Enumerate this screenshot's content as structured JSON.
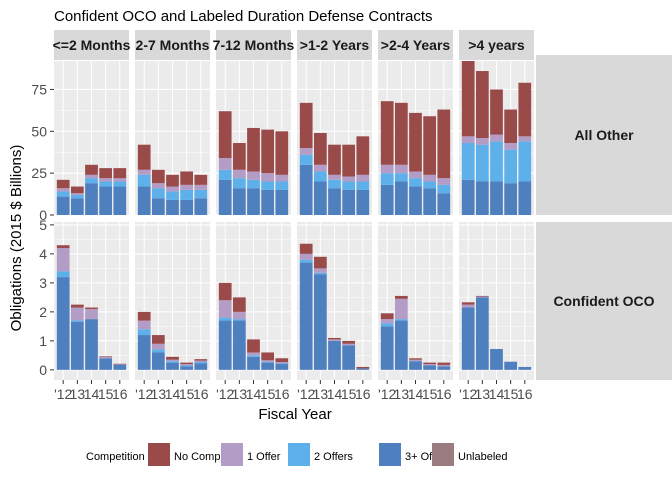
{
  "chart_data": {
    "type": "bar",
    "stacked": true,
    "title": "Confident OCO and Labeled Duration Defense Contracts",
    "xlabel": "Fiscal Year",
    "ylabel": "Obligations (2015 $ Billions)",
    "x": [
      "2012",
      "2013",
      "2014",
      "2015",
      "2016"
    ],
    "x_tick_labels": [
      "'12",
      "13",
      "14",
      "15",
      "16"
    ],
    "column_facets": [
      "<=2 Months",
      "2-7 Months",
      "7-12 Months",
      ">1-2 Years",
      ">2-4 Years",
      ">4 years"
    ],
    "row_facets": [
      "All Other",
      "Confident OCO"
    ],
    "legend": {
      "title": "Competition",
      "position": "bottom",
      "entries": [
        {
          "label": "No Comp.",
          "color": "#9b4a4a"
        },
        {
          "label": "1 Offer",
          "color": "#b39cc6"
        },
        {
          "label": "2 Offers",
          "color": "#5db0ea"
        },
        {
          "label": "3+ Offers",
          "color": "#4e7fbf"
        },
        {
          "label": "Unlabeled",
          "color": "#9a7b80"
        }
      ]
    },
    "grid": true,
    "stack_order_bottom_to_top": [
      "Unlabeled",
      "3+ Offers",
      "2 Offers",
      "1 Offer",
      "No Comp."
    ],
    "panels": [
      {
        "row": "All Other",
        "ylim": [
          0,
          92
        ],
        "yticks": [
          0,
          25,
          50,
          75
        ],
        "facets": [
          {
            "col": "<=2 Months",
            "series": {
              "Unlabeled": [
                0,
                0,
                0,
                0,
                0
              ],
              "3+ Offers": [
                11,
                10,
                19,
                17,
                17
              ],
              "2 Offers": [
                3,
                2,
                3,
                3,
                3
              ],
              "1 Offer": [
                2,
                1,
                2,
                2,
                2
              ],
              "No Comp.": [
                5,
                4,
                6,
                6,
                6
              ]
            }
          },
          {
            "col": "2-7 Months",
            "series": {
              "Unlabeled": [
                0,
                0,
                0,
                0,
                0
              ],
              "3+ Offers": [
                17,
                10,
                9,
                9,
                10
              ],
              "2 Offers": [
                7,
                6,
                5,
                6,
                5
              ],
              "1 Offer": [
                3,
                3,
                3,
                3,
                3
              ],
              "No Comp.": [
                15,
                8,
                7,
                8,
                6
              ]
            }
          },
          {
            "col": "7-12 Months",
            "series": {
              "Unlabeled": [
                0,
                0,
                0,
                0,
                0
              ],
              "3+ Offers": [
                21,
                16,
                16,
                15,
                15
              ],
              "2 Offers": [
                6,
                6,
                5,
                5,
                5
              ],
              "1 Offer": [
                7,
                5,
                5,
                5,
                4
              ],
              "No Comp.": [
                28,
                16,
                26,
                26,
                26
              ]
            }
          },
          {
            "col": ">1-2 Years",
            "series": {
              "Unlabeled": [
                0,
                0,
                0,
                0,
                0
              ],
              "3+ Offers": [
                30,
                20,
                16,
                15,
                15
              ],
              "2 Offers": [
                6,
                6,
                5,
                5,
                5
              ],
              "1 Offer": [
                4,
                4,
                3,
                3,
                4
              ],
              "No Comp.": [
                27,
                19,
                18,
                19,
                23
              ]
            }
          },
          {
            "col": ">2-4 Years",
            "series": {
              "Unlabeled": [
                0,
                0,
                0,
                0,
                0
              ],
              "3+ Offers": [
                18,
                20,
                17,
                16,
                13
              ],
              "2 Offers": [
                7,
                5,
                5,
                4,
                5
              ],
              "1 Offer": [
                5,
                5,
                4,
                4,
                4
              ],
              "No Comp.": [
                38,
                37,
                35,
                35,
                41
              ]
            }
          },
          {
            "col": ">4 years",
            "series": {
              "Unlabeled": [
                0,
                0,
                0,
                0,
                0
              ],
              "3+ Offers": [
                21,
                20,
                20,
                19,
                20
              ],
              "2 Offers": [
                22,
                22,
                24,
                20,
                24
              ],
              "1 Offer": [
                4,
                4,
                4,
                4,
                3
              ],
              "No Comp.": [
                45,
                40,
                27,
                20,
                32
              ]
            }
          }
        ]
      },
      {
        "row": "Confident OCO",
        "ylim": [
          -0.35,
          5.1
        ],
        "yticks": [
          0,
          1,
          2,
          3,
          4,
          5
        ],
        "facets": [
          {
            "col": "<=2 Months",
            "series": {
              "Unlabeled": [
                0,
                0,
                0,
                0,
                0
              ],
              "3+ Offers": [
                3.2,
                1.65,
                1.75,
                0.4,
                0.18
              ],
              "2 Offers": [
                0.2,
                0.05,
                0,
                0,
                0
              ],
              "1 Offer": [
                0.8,
                0.45,
                0.35,
                0.05,
                0.02
              ],
              "No Comp.": [
                0.1,
                0.1,
                0.05,
                0.02,
                0.01
              ]
            }
          },
          {
            "col": "2-7 Months",
            "series": {
              "Unlabeled": [
                0,
                0,
                0,
                0,
                0
              ],
              "3+ Offers": [
                1.2,
                0.6,
                0.25,
                0.12,
                0.22
              ],
              "2 Offers": [
                0.2,
                0.1,
                0.05,
                0.03,
                0.05
              ],
              "1 Offer": [
                0.3,
                0.2,
                0.05,
                0.05,
                0.05
              ],
              "No Comp.": [
                0.3,
                0.3,
                0.1,
                0.05,
                0.05
              ]
            }
          },
          {
            "col": "7-12 Months",
            "series": {
              "Unlabeled": [
                0,
                0,
                0,
                0,
                0
              ],
              "3+ Offers": [
                1.7,
                1.7,
                0.45,
                0.25,
                0.2
              ],
              "2 Offers": [
                0.1,
                0.05,
                0.05,
                0.03,
                0.02
              ],
              "1 Offer": [
                0.6,
                0.25,
                0.1,
                0.05,
                0.05
              ],
              "No Comp.": [
                0.6,
                0.5,
                0.45,
                0.27,
                0.13
              ]
            }
          },
          {
            "col": ">1-2 Years",
            "series": {
              "Unlabeled": [
                0,
                0,
                0,
                0,
                0
              ],
              "3+ Offers": [
                3.7,
                3.3,
                1.0,
                0.85,
                0.05
              ],
              "2 Offers": [
                0.1,
                0.05,
                0,
                0,
                0
              ],
              "1 Offer": [
                0.2,
                0.15,
                0.05,
                0.05,
                0
              ],
              "No Comp.": [
                0.35,
                0.4,
                0.05,
                0.1,
                0.05
              ]
            }
          },
          {
            "col": ">2-4 Years",
            "series": {
              "Unlabeled": [
                0,
                0,
                0,
                0,
                0
              ],
              "3+ Offers": [
                1.5,
                1.7,
                0.3,
                0.15,
                0.12
              ],
              "2 Offers": [
                0.1,
                0.05,
                0,
                0,
                0
              ],
              "1 Offer": [
                0.15,
                0.7,
                0.05,
                0.05,
                0.05
              ],
              "No Comp.": [
                0.2,
                0.1,
                0.05,
                0.05,
                0.08
              ]
            }
          },
          {
            "col": ">4 years",
            "series": {
              "Unlabeled": [
                0,
                0,
                0,
                0,
                0
              ],
              "3+ Offers": [
                2.15,
                2.5,
                0.72,
                0.28,
                0.1
              ],
              "2 Offers": [
                0,
                0,
                0,
                0,
                0
              ],
              "1 Offer": [
                0.1,
                0.03,
                0,
                0,
                0
              ],
              "No Comp.": [
                0.08,
                0.02,
                0,
                0,
                0
              ]
            }
          }
        ]
      }
    ]
  }
}
